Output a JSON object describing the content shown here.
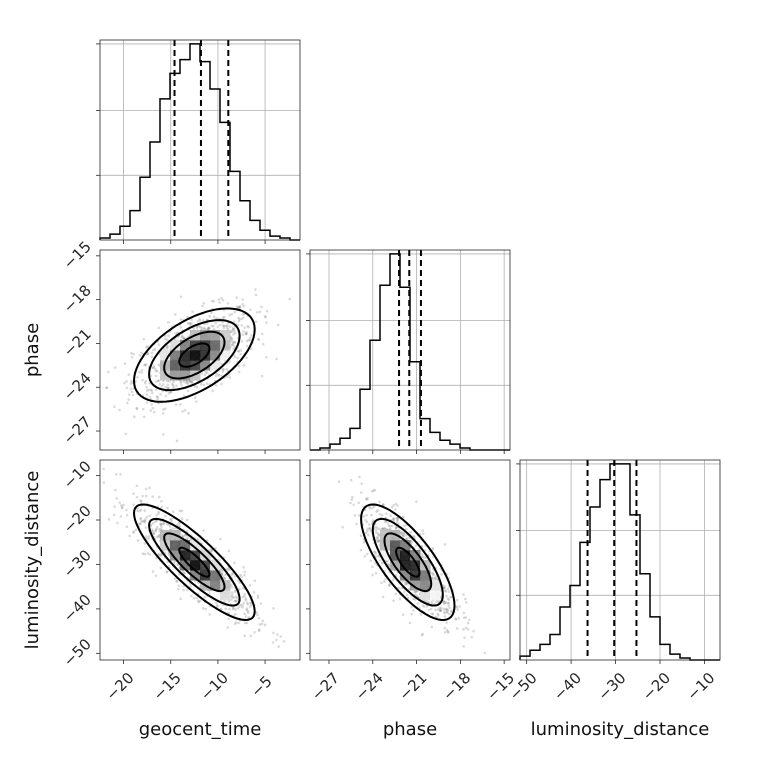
{
  "chart_data": {
    "type": "corner",
    "title": "",
    "parameters": [
      {
        "name": "geocent_time",
        "label": "geocent_time",
        "range": [
          -22.5,
          -1.3
        ],
        "ticks": [
          -20,
          -15,
          -10,
          -5
        ]
      },
      {
        "name": "phase",
        "label": "phase",
        "range": [
          -28.3,
          -14.6
        ],
        "ticks": [
          -27,
          -24,
          -21,
          -18,
          -15
        ]
      },
      {
        "name": "luminosity_distance",
        "label": "luminosity_distance",
        "range": [
          -51.5,
          -6.5
        ],
        "ticks": [
          -50,
          -40,
          -30,
          -20,
          -10
        ]
      }
    ],
    "quantiles": {
      "geocent_time": [
        -14.6,
        -11.8,
        -8.9
      ],
      "phase": [
        -22.2,
        -21.5,
        -20.7
      ],
      "luminosity_distance": [
        -36.3,
        -30.3,
        -25.3
      ]
    },
    "histograms": [
      {
        "parameter": "geocent_time",
        "bin_edges": [
          -22.5,
          -21.44,
          -20.38,
          -19.32,
          -18.26,
          -17.2,
          -16.14,
          -15.08,
          -14.02,
          -12.96,
          -11.9,
          -10.84,
          -9.78,
          -8.72,
          -7.66,
          -6.6,
          -5.54,
          -4.48,
          -3.42,
          -2.36,
          -1.3
        ],
        "counts": [
          1,
          3,
          7,
          15,
          32,
          50,
          72,
          85,
          92,
          100,
          91,
          77,
          60,
          35,
          20,
          10,
          5,
          2,
          1,
          0
        ]
      },
      {
        "parameter": "phase",
        "bin_edges": [
          -28.3,
          -27.615,
          -26.93,
          -26.245,
          -25.56,
          -24.875,
          -24.19,
          -23.505,
          -22.82,
          -22.135,
          -21.45,
          -20.765,
          -20.08,
          -19.395,
          -18.71,
          -18.025,
          -17.34,
          -16.655,
          -15.97,
          -15.285,
          -14.6
        ],
        "counts": [
          0,
          1,
          3,
          6,
          11,
          31,
          56,
          84,
          100,
          83,
          45,
          16,
          9,
          5,
          3,
          1,
          0,
          0,
          0,
          0
        ]
      },
      {
        "parameter": "luminosity_distance",
        "bin_edges": [
          -51.5,
          -49.25,
          -47.0,
          -44.75,
          -42.5,
          -40.25,
          -38.0,
          -35.75,
          -33.5,
          -31.25,
          -29.0,
          -26.75,
          -24.5,
          -22.25,
          -20.0,
          -17.75,
          -15.5,
          -13.25,
          -11.0,
          -8.75,
          -6.5
        ],
        "counts": [
          2,
          5,
          8,
          13,
          27,
          38,
          60,
          78,
          92,
          100,
          100,
          74,
          44,
          22,
          8,
          3,
          1,
          0,
          0,
          0
        ]
      }
    ],
    "joint_distributions": [
      {
        "x": "geocent_time",
        "y": "phase",
        "center": [
          -12.5,
          -21.8
        ],
        "sigma": [
          3.2,
          1.6
        ],
        "correlation": 0.55
      },
      {
        "x": "geocent_time",
        "y": "luminosity_distance",
        "center": [
          -12.5,
          -29.5
        ],
        "sigma": [
          3.2,
          6.5
        ],
        "correlation": -0.85
      },
      {
        "x": "phase",
        "y": "luminosity_distance",
        "center": [
          -21.6,
          -29.5
        ],
        "sigma": [
          1.6,
          6.5
        ],
        "correlation": -0.75
      }
    ],
    "grid": true,
    "legend": "none"
  }
}
